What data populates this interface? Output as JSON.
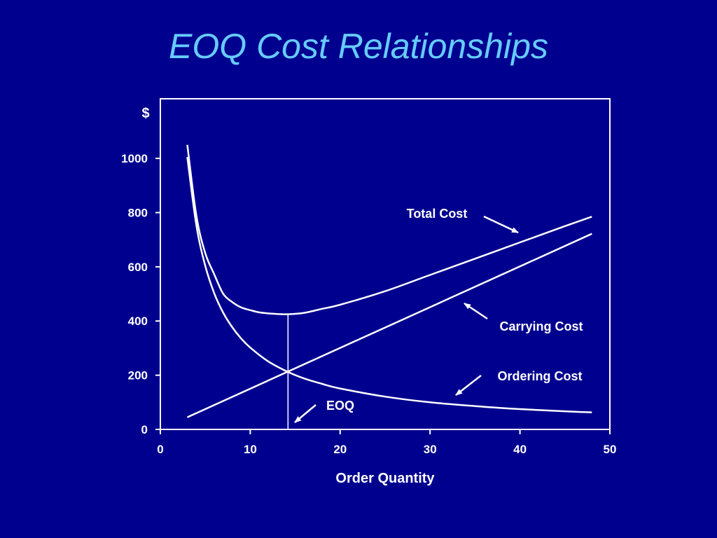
{
  "slide": {
    "title": "EOQ Cost Relationships"
  },
  "colors": {
    "background": "#00008f",
    "title": "#66ccff",
    "lines": "#ffffff"
  },
  "chart_data": {
    "type": "line",
    "title": "EOQ Cost Relationships",
    "xlabel": "Order Quantity",
    "ylabel": "$",
    "xlim": [
      0,
      50
    ],
    "ylim": [
      0,
      1000
    ],
    "x_ticks": [
      "0",
      "10",
      "20",
      "30",
      "40",
      "50"
    ],
    "y_ticks": [
      "0",
      "200",
      "400",
      "600",
      "800",
      "1000"
    ],
    "grid": false,
    "eoq": {
      "label": "EOQ",
      "x": 14.2,
      "y": 212
    },
    "series": [
      {
        "name": "Total Cost",
        "x": [
          3,
          4,
          5,
          6,
          7,
          8,
          9,
          10,
          11,
          12,
          13,
          14.2,
          16,
          18,
          20,
          25,
          30,
          35,
          40,
          45,
          48
        ],
        "values": [
          1050,
          790,
          650,
          572,
          500,
          470,
          450,
          440,
          432,
          428,
          426,
          425,
          430,
          445,
          460,
          510,
          570,
          630,
          690,
          750,
          785
        ]
      },
      {
        "name": "Carrying Cost",
        "x": [
          3,
          48
        ],
        "values": [
          45,
          722
        ]
      },
      {
        "name": "Ordering Cost",
        "x": [
          3,
          4,
          5,
          6,
          7,
          8,
          9,
          10,
          12,
          14.2,
          16,
          18,
          20,
          25,
          30,
          35,
          40,
          45,
          48
        ],
        "values": [
          1005,
          754,
          603,
          502,
          430,
          377,
          335,
          302,
          251,
          212,
          188,
          168,
          151,
          121,
          100,
          86,
          75,
          67,
          63
        ]
      }
    ]
  }
}
